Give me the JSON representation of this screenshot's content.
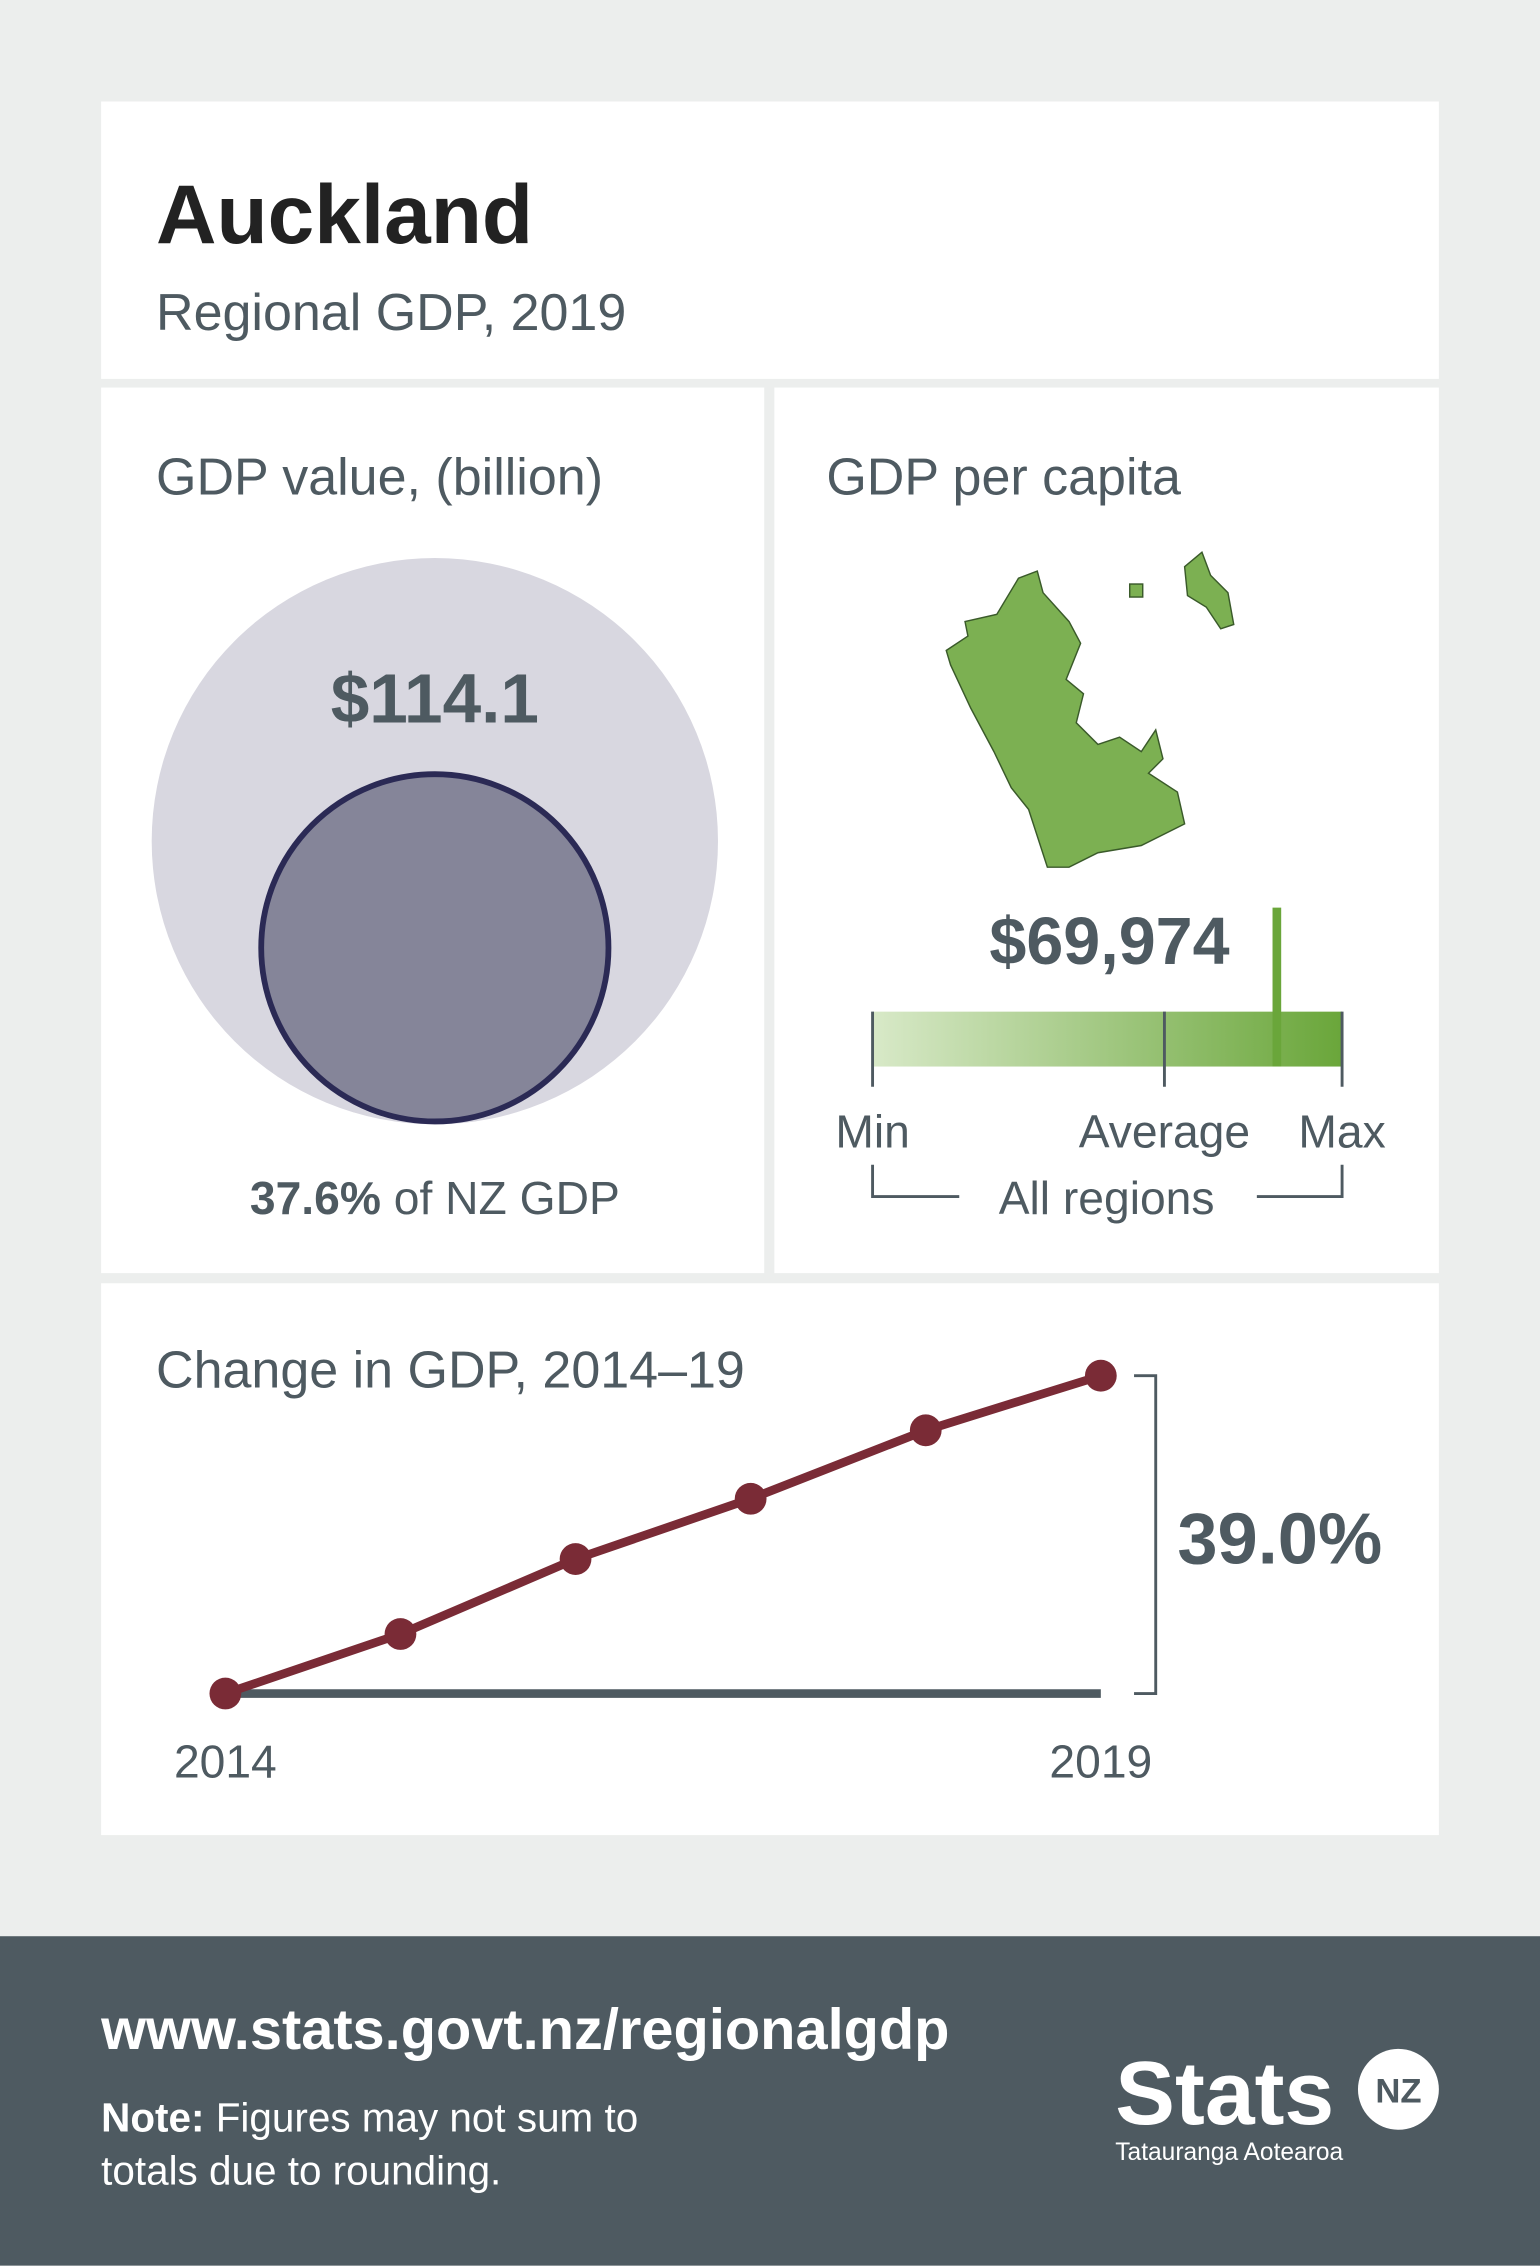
{
  "header": {
    "title": "Auckland",
    "subtitle": "Regional GDP, 2019"
  },
  "gdp_value": {
    "title": "GDP value, (billion)",
    "value": "$114.1",
    "share": {
      "value": 37.6,
      "label": "37.6%"
    },
    "share_text": "of NZ GDP"
  },
  "per_capita": {
    "title": "GDP per capita",
    "value": 69974,
    "value_label": "$69,974",
    "scale": {
      "min": {
        "label": "Min",
        "value": 41300
      },
      "average": {
        "label": "Average",
        "value": 62000
      },
      "max": {
        "label": "Max",
        "value": 74600
      }
    },
    "group_label": "All regions",
    "color": "#6aa63a"
  },
  "change": {
    "type": "line",
    "title": "Change in GDP, 2014–19",
    "x": [
      2014,
      2015,
      2016,
      2017,
      2018,
      2019
    ],
    "xticks": [
      2014,
      2019
    ],
    "values": [
      0,
      7.3,
      16.5,
      23.9,
      32.3,
      39.0
    ],
    "total_label": "39.0%",
    "color": "#7a2b36"
  },
  "footer": {
    "url": "www.stats.govt.nz/regionalgdp",
    "note": {
      "label": "Note:",
      "lines": [
        "Figures may not sum to",
        "totals due to rounding."
      ]
    },
    "logo": {
      "name": "Stats",
      "badge": "NZ",
      "tagline": "Tatauranga Aotearoa"
    }
  }
}
